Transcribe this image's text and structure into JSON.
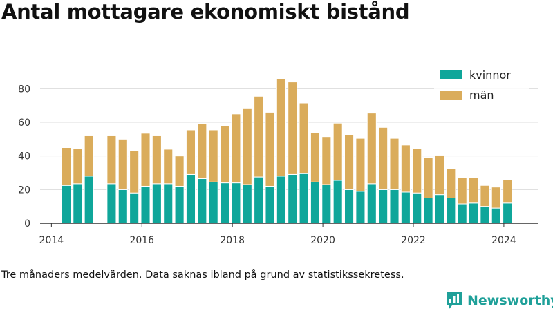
{
  "title": "Antal mottagare ekonomiskt bistånd",
  "note": "Tre månaders medelvärden. Data saknas ibland på grund av statistikssekretess.",
  "brand": {
    "name": "Newsworthy",
    "icon": "newsworthy-logo-icon",
    "color": "#1fa099"
  },
  "chart_data": {
    "type": "bar",
    "stacked": true,
    "title": "",
    "xlabel": "",
    "ylabel": "",
    "ylim": [
      0,
      90
    ],
    "xlim": [
      2013.75,
      2024.75
    ],
    "grid": true,
    "legend_position": "top-right",
    "yticks": [
      0,
      20,
      40,
      60,
      80
    ],
    "xticks": [
      2014,
      2016,
      2018,
      2020,
      2022,
      2024
    ],
    "xtick_labels": [
      "2014",
      "2016",
      "2018",
      "2020",
      "2022",
      "2024"
    ],
    "x": [
      2014.33,
      2014.58,
      2014.83,
      2015.33,
      2015.58,
      2015.83,
      2016.08,
      2016.33,
      2016.58,
      2016.83,
      2017.08,
      2017.33,
      2017.58,
      2017.83,
      2018.08,
      2018.33,
      2018.58,
      2018.83,
      2019.08,
      2019.33,
      2019.58,
      2019.83,
      2020.08,
      2020.33,
      2020.58,
      2020.83,
      2021.08,
      2021.33,
      2021.58,
      2021.83,
      2022.08,
      2022.33,
      2022.58,
      2022.83,
      2023.08,
      2023.33,
      2023.58,
      2023.83,
      2024.08
    ],
    "series": [
      {
        "name": "kvinnor",
        "color": "#0fa69a",
        "values": [
          22.5,
          23.5,
          28,
          23.5,
          20,
          18,
          22,
          23.5,
          23.5,
          22,
          29,
          26.5,
          24.5,
          24,
          24,
          23,
          27.5,
          22,
          28,
          29,
          29.5,
          24.5,
          23,
          25.5,
          20,
          19,
          23.5,
          20,
          20,
          18.5,
          18,
          15,
          17,
          15,
          11.5,
          12,
          10,
          9,
          12
        ]
      },
      {
        "name": "män",
        "color": "#daac5b",
        "values": [
          22.5,
          21,
          24,
          28.5,
          30,
          25,
          31.5,
          28.5,
          20.5,
          18,
          26.5,
          32.5,
          31,
          34,
          41,
          45.5,
          48,
          44,
          58,
          55,
          42,
          29.5,
          28.5,
          34,
          32.5,
          31.5,
          42,
          37,
          30.5,
          28,
          26.5,
          24,
          23.5,
          17.5,
          15.5,
          15,
          12.5,
          12.5,
          14
        ]
      }
    ]
  }
}
